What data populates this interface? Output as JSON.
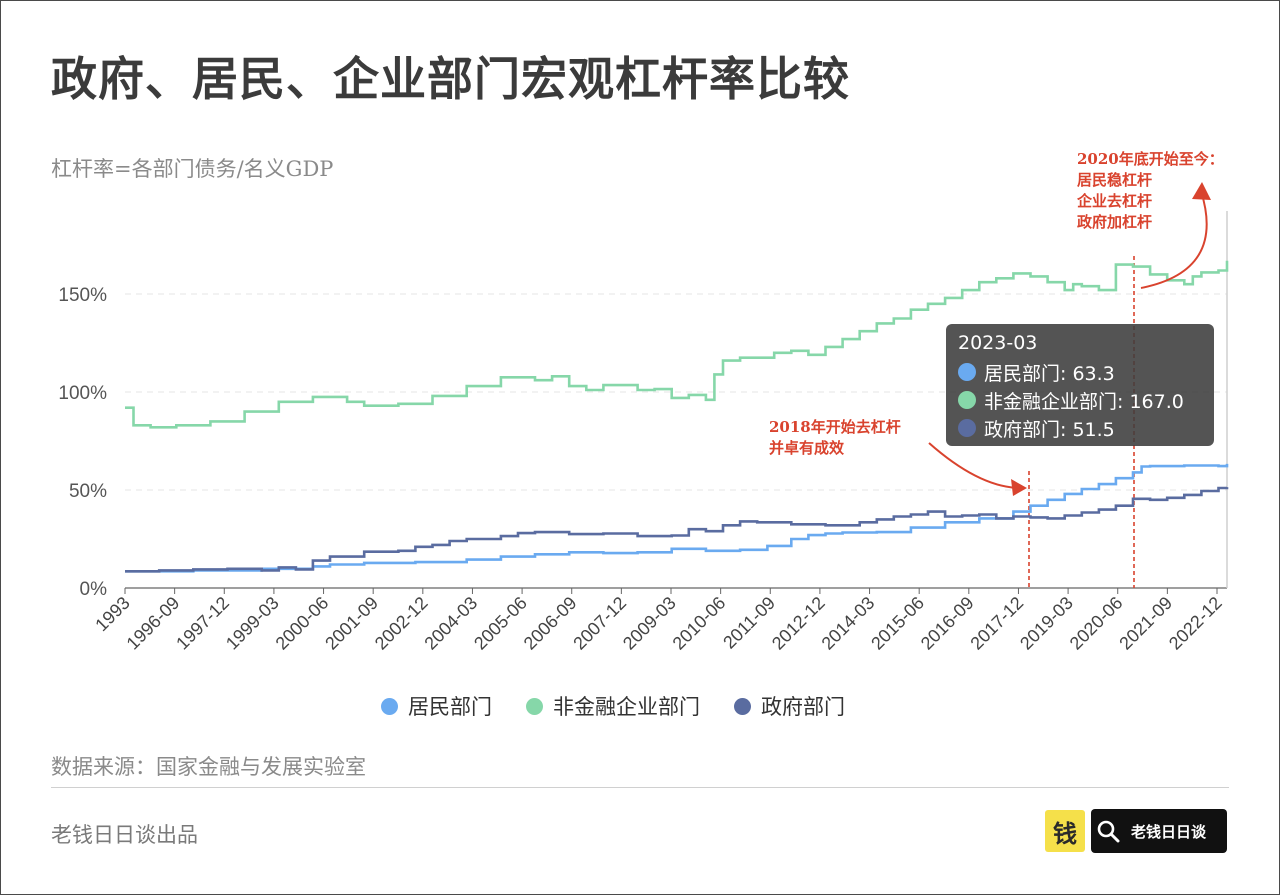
{
  "header": {
    "title": "政府、居民、企业部门宏观杠杆率比较",
    "subtitle": "杠杆率=各部门债务/名义GDP"
  },
  "footer": {
    "source": "数据来源：国家金融与发展实验室",
    "producer": "老钱日日谈出品",
    "logo_icon_text": "钱",
    "logo_text": "老钱日日谈"
  },
  "colors": {
    "household": "#6aaaf0",
    "corporate": "#86d7a9",
    "government": "#5a6ca0",
    "annotation": "#d9432e"
  },
  "tooltip": {
    "date": "2023-03",
    "rows": [
      {
        "label": "居民部门: 63.3",
        "color": "#6aaaf0"
      },
      {
        "label": "非金融企业部门: 167.0",
        "color": "#86d7a9"
      },
      {
        "label": "政府部门: 51.5",
        "color": "#5a6ca0"
      }
    ]
  },
  "annotations": {
    "a2018": [
      "2018年开始去杠杆",
      "并卓有成效"
    ],
    "a2020": [
      "2020年底开始至今：",
      "居民稳杠杆",
      "企业去杠杆",
      "政府加杠杆"
    ]
  },
  "chart_data": {
    "type": "line",
    "step": true,
    "x_start": "1993",
    "x_end": "2023-03",
    "x_ticks": [
      "1993",
      "1996-09",
      "1997-12",
      "1999-03",
      "2000-06",
      "2001-09",
      "2002-12",
      "2004-03",
      "2005-06",
      "2006-09",
      "2007-12",
      "2009-03",
      "2010-06",
      "2011-09",
      "2012-12",
      "2014-03",
      "2015-06",
      "2016-09",
      "2017-12",
      "2019-03",
      "2020-06",
      "2021-09",
      "2022-12"
    ],
    "y_ticks": [
      "0%",
      "50%",
      "100%",
      "150%"
    ],
    "ylim": [
      0,
      200
    ],
    "grid": "horizontal-dashed",
    "legend_position": "bottom",
    "reference_lines": [
      "2018-03",
      "2020-12"
    ],
    "series": [
      {
        "name": "居民部门",
        "color": "#6aaaf0",
        "points": [
          [
            1993.0,
            8.5
          ],
          [
            1995.0,
            9.0
          ],
          [
            1997.0,
            9.8
          ],
          [
            1998.5,
            11.0
          ],
          [
            1999.0,
            12.0
          ],
          [
            2000.0,
            12.8
          ],
          [
            2001.5,
            13.2
          ],
          [
            2003.0,
            14.5
          ],
          [
            2004.0,
            16.0
          ],
          [
            2005.0,
            17.2
          ],
          [
            2006.0,
            18.2
          ],
          [
            2007.0,
            17.8
          ],
          [
            2008.0,
            18.2
          ],
          [
            2009.0,
            20.0
          ],
          [
            2010.0,
            19.0
          ],
          [
            2011.0,
            19.5
          ],
          [
            2011.8,
            21.5
          ],
          [
            2012.5,
            25.0
          ],
          [
            2013.0,
            27.0
          ],
          [
            2013.5,
            27.8
          ],
          [
            2014.0,
            28.3
          ],
          [
            2015.0,
            28.5
          ],
          [
            2016.0,
            30.8
          ],
          [
            2017.0,
            33.5
          ],
          [
            2018.0,
            35.5
          ],
          [
            2019.0,
            39.0
          ],
          [
            2019.5,
            42.0
          ],
          [
            2020.0,
            45.0
          ],
          [
            2020.5,
            48.0
          ],
          [
            2021.0,
            50.5
          ],
          [
            2021.5,
            53.0
          ],
          [
            2022.0,
            56.0
          ],
          [
            2022.5,
            59.0
          ],
          [
            2022.75,
            62.0
          ],
          [
            2023.0,
            62.2
          ],
          [
            2024.0,
            62.5
          ],
          [
            2025.0,
            62.2
          ],
          [
            2025.25,
            63.3
          ]
        ]
      },
      {
        "name": "非金融企业部门",
        "color": "#86d7a9",
        "points": [
          [
            1993.0,
            92.0
          ],
          [
            1993.25,
            83.0
          ],
          [
            1993.75,
            82.0
          ],
          [
            1994.5,
            83.0
          ],
          [
            1995.5,
            85.0
          ],
          [
            1996.5,
            90.0
          ],
          [
            1997.5,
            95.0
          ],
          [
            1998.5,
            97.5
          ],
          [
            1999.5,
            95.0
          ],
          [
            2000.0,
            93.0
          ],
          [
            2001.0,
            94.0
          ],
          [
            2002.0,
            98.0
          ],
          [
            2003.0,
            103.0
          ],
          [
            2004.0,
            107.5
          ],
          [
            2005.0,
            106.0
          ],
          [
            2005.5,
            108.0
          ],
          [
            2006.0,
            103.0
          ],
          [
            2006.5,
            101.0
          ],
          [
            2007.0,
            103.5
          ],
          [
            2008.0,
            101.0
          ],
          [
            2008.5,
            101.5
          ],
          [
            2009.0,
            97.0
          ],
          [
            2009.5,
            98.5
          ],
          [
            2010.0,
            96.0
          ],
          [
            2010.25,
            109.0
          ],
          [
            2010.5,
            116.0
          ],
          [
            2011.0,
            117.5
          ],
          [
            2012.0,
            120.0
          ],
          [
            2012.5,
            121.0
          ],
          [
            2013.0,
            119.0
          ],
          [
            2013.5,
            123.0
          ],
          [
            2014.0,
            127.0
          ],
          [
            2014.5,
            131.0
          ],
          [
            2015.0,
            135.0
          ],
          [
            2015.5,
            137.5
          ],
          [
            2016.0,
            142.0
          ],
          [
            2016.5,
            145.0
          ],
          [
            2017.0,
            148.0
          ],
          [
            2017.5,
            152.0
          ],
          [
            2018.0,
            156.0
          ],
          [
            2018.5,
            158.0
          ],
          [
            2019.0,
            160.5
          ],
          [
            2019.5,
            159.0
          ],
          [
            2020.0,
            156.0
          ],
          [
            2020.5,
            152.0
          ],
          [
            2020.75,
            155.0
          ],
          [
            2021.0,
            154.0
          ],
          [
            2021.5,
            152.0
          ],
          [
            2022.0,
            165.0
          ],
          [
            2022.5,
            164.0
          ],
          [
            2023.0,
            160.0
          ],
          [
            2023.5,
            157.0
          ],
          [
            2024.0,
            155.0
          ],
          [
            2024.25,
            159.0
          ],
          [
            2024.5,
            161.0
          ],
          [
            2025.0,
            162.0
          ],
          [
            2025.25,
            167.0
          ]
        ]
      },
      {
        "name": "政府部门",
        "color": "#5a6ca0",
        "points": [
          [
            1993.0,
            8.5
          ],
          [
            1994.0,
            9.0
          ],
          [
            1995.0,
            9.5
          ],
          [
            1996.0,
            9.8
          ],
          [
            1997.0,
            9.0
          ],
          [
            1997.5,
            10.5
          ],
          [
            1998.0,
            9.5
          ],
          [
            1998.5,
            14.0
          ],
          [
            1999.0,
            16.0
          ],
          [
            2000.0,
            18.5
          ],
          [
            2001.0,
            19.0
          ],
          [
            2001.5,
            21.0
          ],
          [
            2002.0,
            22.0
          ],
          [
            2002.5,
            24.0
          ],
          [
            2003.0,
            25.0
          ],
          [
            2004.0,
            26.5
          ],
          [
            2004.5,
            28.0
          ],
          [
            2005.0,
            28.5
          ],
          [
            2006.0,
            27.5
          ],
          [
            2007.0,
            27.8
          ],
          [
            2008.0,
            26.5
          ],
          [
            2009.0,
            26.8
          ],
          [
            2009.5,
            30.0
          ],
          [
            2010.0,
            29.0
          ],
          [
            2010.5,
            32.0
          ],
          [
            2011.0,
            34.0
          ],
          [
            2011.5,
            33.5
          ],
          [
            2012.5,
            32.5
          ],
          [
            2013.5,
            32.0
          ],
          [
            2014.5,
            33.5
          ],
          [
            2015.0,
            35.0
          ],
          [
            2015.5,
            36.5
          ],
          [
            2016.0,
            37.5
          ],
          [
            2016.5,
            39.0
          ],
          [
            2017.0,
            36.5
          ],
          [
            2017.5,
            37.0
          ],
          [
            2018.0,
            37.5
          ],
          [
            2018.5,
            35.5
          ],
          [
            2019.0,
            36.5
          ],
          [
            2019.5,
            36.0
          ],
          [
            2020.0,
            35.5
          ],
          [
            2020.5,
            37.0
          ],
          [
            2021.0,
            38.5
          ],
          [
            2021.5,
            40.0
          ],
          [
            2022.0,
            42.0
          ],
          [
            2022.5,
            45.5
          ],
          [
            2023.0,
            45.0
          ],
          [
            2023.5,
            46.0
          ],
          [
            2024.0,
            47.5
          ],
          [
            2024.5,
            49.5
          ],
          [
            2025.0,
            51.0
          ],
          [
            2025.25,
            51.5
          ]
        ]
      }
    ]
  }
}
